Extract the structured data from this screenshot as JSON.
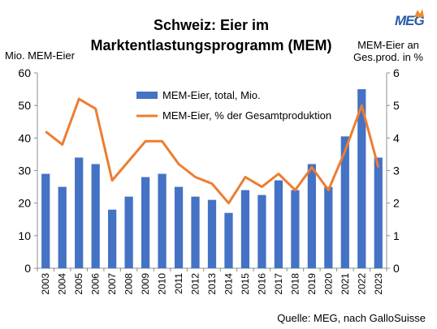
{
  "logo": {
    "text": "MEG",
    "accent_color": "#f08a2c",
    "text_color": "#2a5caa"
  },
  "chart_data": {
    "type": "bar+line",
    "title_line1": "Schweiz: Eier im",
    "title_line2": "Marktentlastungsprogramm (MEM)",
    "ylabel_left": "Mio. MEM-Eier",
    "ylabel_right_line1": "MEM-Eier an",
    "ylabel_right_line2": "Ges.prod. in %",
    "categories": [
      "2003",
      "2004",
      "2005",
      "2006",
      "2007",
      "2008",
      "2009",
      "2010",
      "2011",
      "2012",
      "2013",
      "2014",
      "2015",
      "2016",
      "2017",
      "2018",
      "2019",
      "2020",
      "2021",
      "2022",
      "2023"
    ],
    "series": [
      {
        "name": "MEM-Eier, total, Mio.",
        "type": "bar",
        "axis": "left",
        "color": "#4472c4",
        "values": [
          29,
          25,
          34,
          32,
          18,
          22,
          28,
          29,
          25,
          22,
          21,
          17,
          24,
          22.5,
          27,
          24,
          32,
          25,
          40.5,
          55,
          34
        ]
      },
      {
        "name": "MEM-Eier, % der Gesamtproduktion",
        "type": "line",
        "axis": "right",
        "color": "#ed7d31",
        "values": [
          4.2,
          3.8,
          5.2,
          4.9,
          2.7,
          3.3,
          3.9,
          3.9,
          3.2,
          2.8,
          2.6,
          2.0,
          2.8,
          2.5,
          2.9,
          2.4,
          3.1,
          2.4,
          3.6,
          5.0,
          3.1
        ]
      }
    ],
    "ylim_left": [
      0,
      60
    ],
    "yticks_left": [
      "0",
      "10",
      "20",
      "30",
      "40",
      "50",
      "60"
    ],
    "ylim_right": [
      0,
      6
    ],
    "yticks_right": [
      "0",
      "1",
      "2",
      "3",
      "4",
      "5",
      "6"
    ],
    "grid": false,
    "legend_position": "top-center"
  },
  "source": "Quelle: MEG, nach GalloSuisse"
}
